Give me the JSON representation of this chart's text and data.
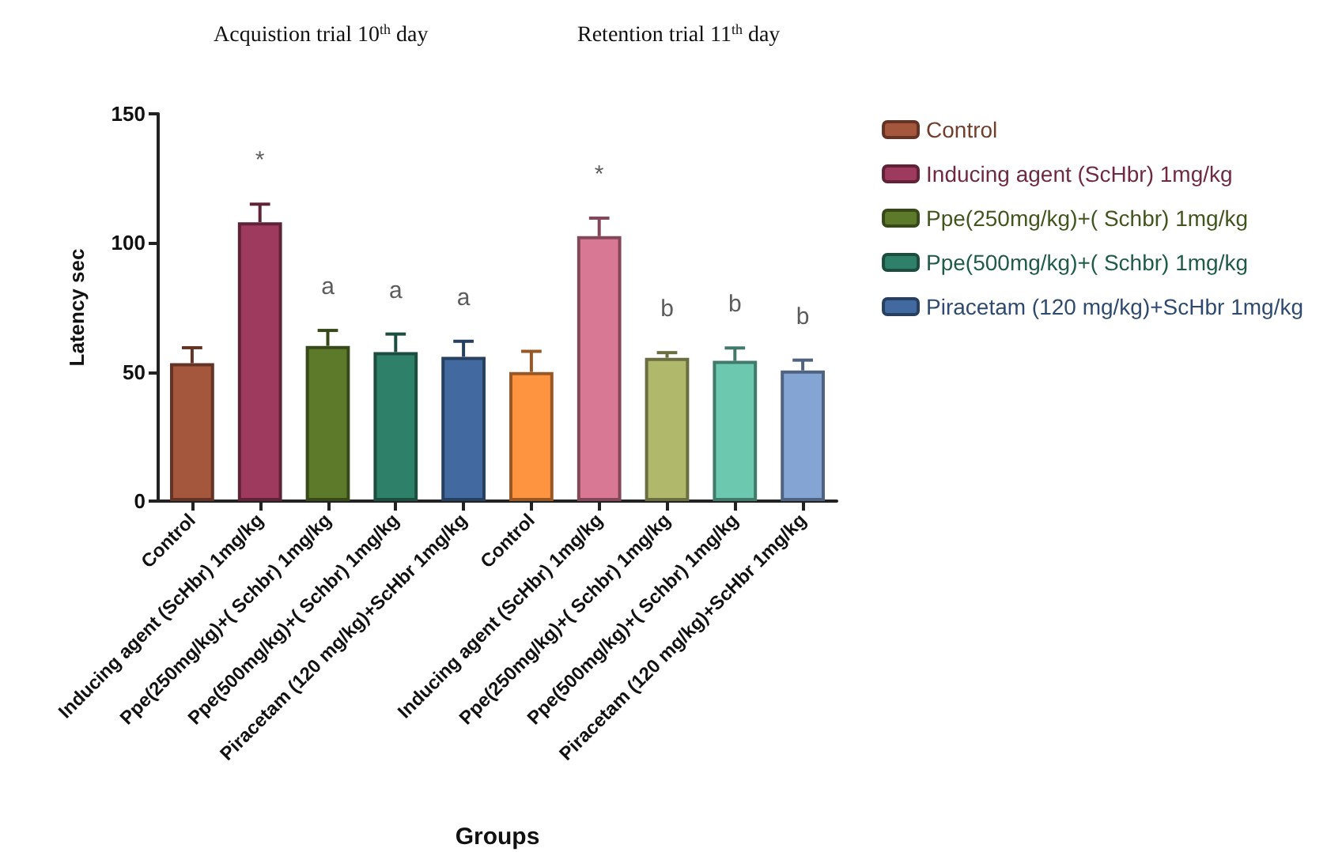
{
  "chart_data": {
    "type": "bar",
    "xlabel": "Groups",
    "ylabel": "Latency sec",
    "annotations": [
      "Acquistion trial 10$^{th}$ day",
      "Retention trial 11$^{th}$ day"
    ],
    "categories": [
      "Control",
      "Inducing agent (ScHbr) 1mg/kg",
      "Ppe(250mg/kg)+( Schbr) 1mg/kg",
      "Ppe(500mg/kg)+( Schbr) 1mg/kg",
      "Piracetam (120 mg/kg)+ScHbr 1mg/kg",
      "Control",
      "Inducing agent (ScHbr) 1mg/kg",
      "Ppe(250mg/kg)+( Schbr) 1mg/kg",
      "Ppe(500mg/kg)+( Schbr) 1mg/kg",
      "Piracetam (120 mg/kg)+ScHbr 1mg/kg"
    ],
    "series": [
      {
        "name": "Control",
        "color": "#a5573d",
        "colors": [
          "#a5573d",
          null,
          null,
          null,
          null,
          "#fe9340",
          null,
          null,
          null,
          null
        ],
        "values": [
          53.4,
          null,
          null,
          null,
          null,
          50,
          null,
          null,
          null,
          null
        ],
        "errors": [
          6,
          null,
          null,
          null,
          null,
          8,
          null,
          null,
          null,
          null
        ]
      },
      {
        "name": "Inducing agent (ScHbr) 1mg/kg",
        "color": "#9e3a5e",
        "colors": [
          null,
          "#9e3a5e",
          null,
          null,
          null,
          null,
          "#d87894",
          null,
          null,
          null
        ],
        "values": [
          null,
          108,
          null,
          null,
          null,
          null,
          102.6,
          null,
          null,
          null
        ],
        "errors": [
          null,
          7,
          null,
          null,
          null,
          null,
          7,
          null,
          null,
          null
        ],
        "value_labels": [
          null,
          "*",
          null,
          null,
          null,
          null,
          "*",
          null,
          null,
          null
        ]
      },
      {
        "name": "Ppe(250mg/kg)+( Schbr) 1mg/kg",
        "color": "#5d7a2a",
        "colors": [
          null,
          null,
          "#5d7a2a",
          null,
          null,
          null,
          null,
          "#b0b86c",
          null,
          null
        ],
        "values": [
          null,
          null,
          60.1,
          null,
          null,
          null,
          null,
          55.5,
          null,
          null
        ],
        "errors": [
          null,
          null,
          6,
          null,
          null,
          null,
          null,
          2,
          null,
          null
        ],
        "value_labels": [
          null,
          null,
          "a",
          null,
          null,
          null,
          null,
          "b",
          null,
          null
        ]
      },
      {
        "name": "Ppe(500mg/kg)+( Schbr) 1mg/kg",
        "color": "#2e8068",
        "colors": [
          null,
          null,
          null,
          "#2e8068",
          null,
          null,
          null,
          null,
          "#6cc9b0",
          null
        ],
        "values": [
          null,
          null,
          null,
          57.7,
          null,
          null,
          null,
          null,
          54.3,
          null
        ],
        "errors": [
          null,
          null,
          null,
          7,
          null,
          null,
          null,
          null,
          5,
          null
        ],
        "value_labels": [
          null,
          null,
          null,
          "a",
          null,
          null,
          null,
          null,
          "b",
          null
        ]
      },
      {
        "name": "Piracetam (120 mg/kg)+ScHbr 1mg/kg",
        "color": "#426aa0",
        "colors": [
          null,
          null,
          null,
          null,
          "#426aa0",
          null,
          null,
          null,
          null,
          "#84a4d4"
        ],
        "values": [
          null,
          null,
          null,
          null,
          55.9,
          null,
          null,
          null,
          null,
          50.6
        ],
        "errors": [
          null,
          null,
          null,
          null,
          6,
          null,
          null,
          null,
          null,
          4
        ],
        "value_labels": [
          null,
          null,
          null,
          null,
          "a",
          null,
          null,
          null,
          null,
          "b"
        ]
      }
    ],
    "ylim": [
      0,
      150
    ],
    "yticks": [
      0,
      50,
      100,
      150
    ],
    "grid": false,
    "legend": "right"
  }
}
